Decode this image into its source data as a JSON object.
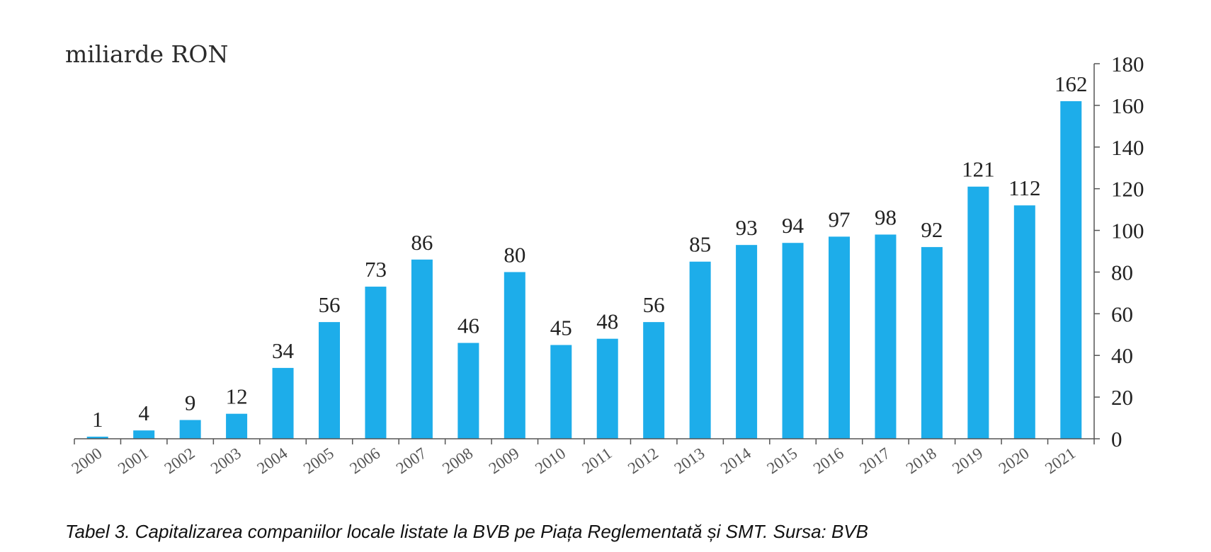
{
  "caption": "Tabel 3. Capitalizarea companiilor locale listate la BVB pe Piața Reglementată și SMT. Sursa: BVB",
  "chart_data": {
    "type": "bar",
    "categories": [
      "2000",
      "2001",
      "2002",
      "2003",
      "2004",
      "2005",
      "2006",
      "2007",
      "2008",
      "2009",
      "2010",
      "2011",
      "2012",
      "2013",
      "2014",
      "2015",
      "2016",
      "2017",
      "2018",
      "2019",
      "2020",
      "2021"
    ],
    "values": [
      1,
      4,
      9,
      12,
      34,
      56,
      73,
      86,
      46,
      80,
      45,
      48,
      56,
      85,
      93,
      94,
      97,
      98,
      92,
      121,
      112,
      162
    ],
    "title": "",
    "unit_label": "miliarde RON",
    "xlabel": "",
    "ylabel": "",
    "ylim": [
      0,
      180
    ],
    "yticks": [
      0,
      20,
      40,
      60,
      80,
      100,
      120,
      140,
      160,
      180
    ],
    "y_axis_position": "right",
    "grid": false,
    "legend": "none",
    "bar_color": "#1DADEA",
    "data_labels": [
      "1",
      "4",
      "9",
      "12",
      "34",
      "56",
      "73",
      "86",
      "46",
      "80",
      "45",
      "48",
      "56",
      "85",
      "93",
      "94",
      "97",
      "98",
      "92",
      "121",
      "112",
      "162"
    ]
  }
}
